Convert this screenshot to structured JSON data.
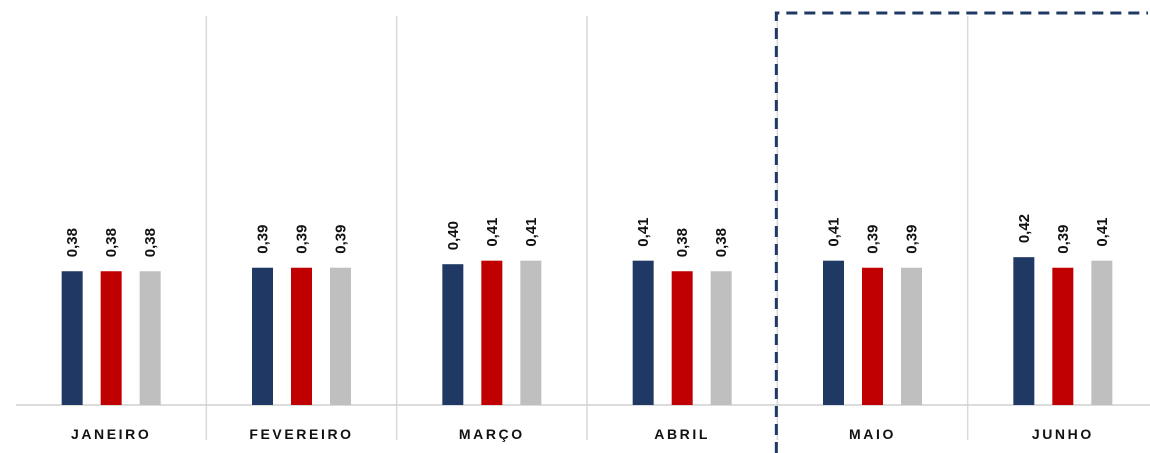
{
  "chart_data": {
    "type": "bar",
    "title": "",
    "xlabel": "",
    "ylabel": "",
    "categories": [
      "JANEIRO",
      "FEVEREIRO",
      "MARÇO",
      "ABRIL",
      "MAIO",
      "JUNHO"
    ],
    "series": [
      {
        "values": [
          0.38,
          0.39,
          0.4,
          0.41,
          0.41,
          0.42
        ],
        "labels": [
          "0,38",
          "0,39",
          "0,40",
          "0,41",
          "0,41",
          "0,42"
        ],
        "color": "#1F3864"
      },
      {
        "values": [
          0.38,
          0.39,
          0.41,
          0.38,
          0.39,
          0.39
        ],
        "labels": [
          "0,38",
          "0,39",
          "0,41",
          "0,38",
          "0,39",
          "0,39"
        ],
        "color": "#C00000"
      },
      {
        "values": [
          0.38,
          0.39,
          0.41,
          0.38,
          0.39,
          0.41
        ],
        "labels": [
          "0,38",
          "0,39",
          "0,41",
          "0,38",
          "0,39",
          "0,41"
        ],
        "color": "#BFBFBF"
      }
    ],
    "ylim": [
      0,
      1.0
    ],
    "grid": "vertical separators between categories",
    "legend": "none",
    "highlight": {
      "from_category": "MAIO",
      "style": "dashed-box",
      "color": "#1F3864"
    }
  }
}
